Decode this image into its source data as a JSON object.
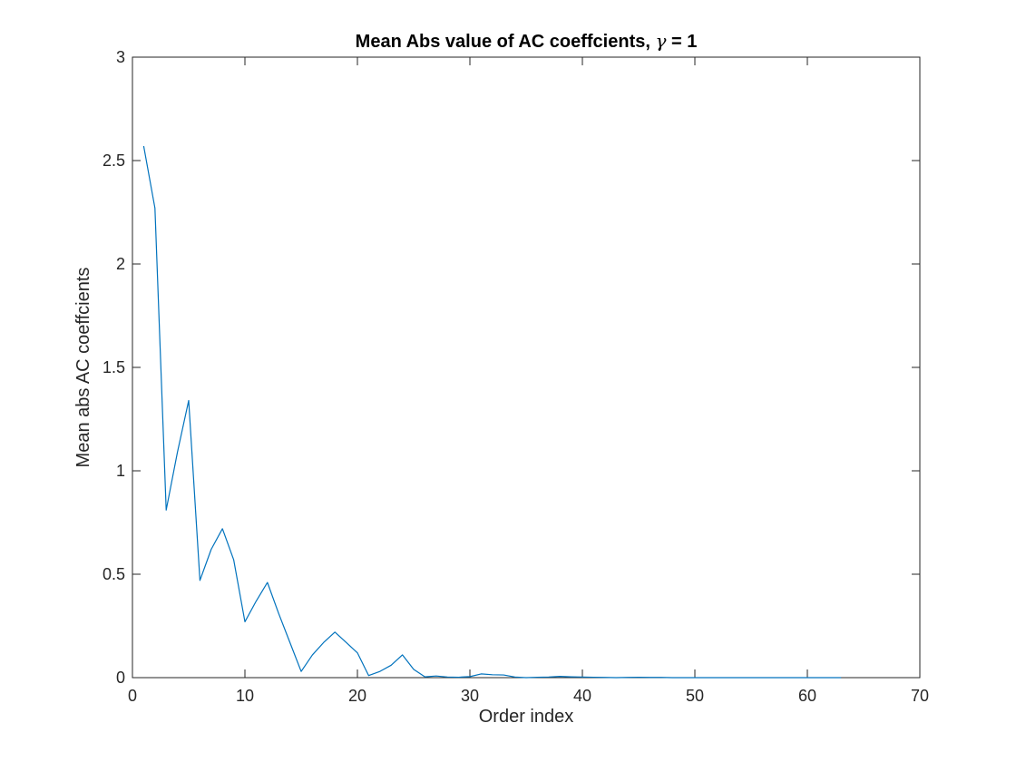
{
  "chart_data": {
    "type": "line",
    "title_prefix": "Mean Abs value of AC coeffcients, ",
    "title_symbol": "γ",
    "title_suffix": " = 1",
    "xlabel": "Order index",
    "ylabel": "Mean abs AC coeffcients",
    "xlim": [
      0,
      70
    ],
    "ylim": [
      0,
      3
    ],
    "xticks": [
      0,
      10,
      20,
      30,
      40,
      50,
      60,
      70
    ],
    "yticks": [
      0,
      0.5,
      1,
      1.5,
      2,
      2.5,
      3
    ],
    "xtick_labels": [
      "0",
      "10",
      "20",
      "30",
      "40",
      "50",
      "60",
      "70"
    ],
    "ytick_labels": [
      "0",
      "0.5",
      "1",
      "1.5",
      "2",
      "2.5",
      "3"
    ],
    "grid": false,
    "series_color": "#0072BD",
    "x": [
      1,
      2,
      3,
      4,
      5,
      6,
      7,
      8,
      9,
      10,
      11,
      12,
      13,
      14,
      15,
      16,
      17,
      18,
      19,
      20,
      21,
      22,
      23,
      24,
      25,
      26,
      27,
      28,
      29,
      30,
      31,
      32,
      33,
      34,
      35,
      36,
      37,
      38,
      39,
      40,
      41,
      42,
      43,
      44,
      45,
      46,
      47,
      48,
      49,
      50,
      51,
      52,
      53,
      54,
      55,
      56,
      57,
      58,
      59,
      60,
      61,
      62,
      63
    ],
    "y": [
      2.57,
      2.27,
      0.81,
      1.09,
      1.34,
      0.47,
      0.62,
      0.72,
      0.57,
      0.27,
      0.37,
      0.46,
      0.31,
      0.17,
      0.03,
      0.11,
      0.17,
      0.22,
      0.17,
      0.12,
      0.01,
      0.03,
      0.06,
      0.11,
      0.04,
      0.004,
      0.008,
      0.003,
      0.002,
      0.005,
      0.018,
      0.014,
      0.013,
      0.003,
      0,
      0.002,
      0.003,
      0.006,
      0.004,
      0.003,
      0.002,
      0.001,
      0,
      0.001,
      0.002,
      0.001,
      0.001,
      0,
      0,
      0,
      0,
      0,
      0,
      0,
      0,
      0,
      0,
      0,
      0,
      0,
      0,
      0,
      0
    ]
  }
}
